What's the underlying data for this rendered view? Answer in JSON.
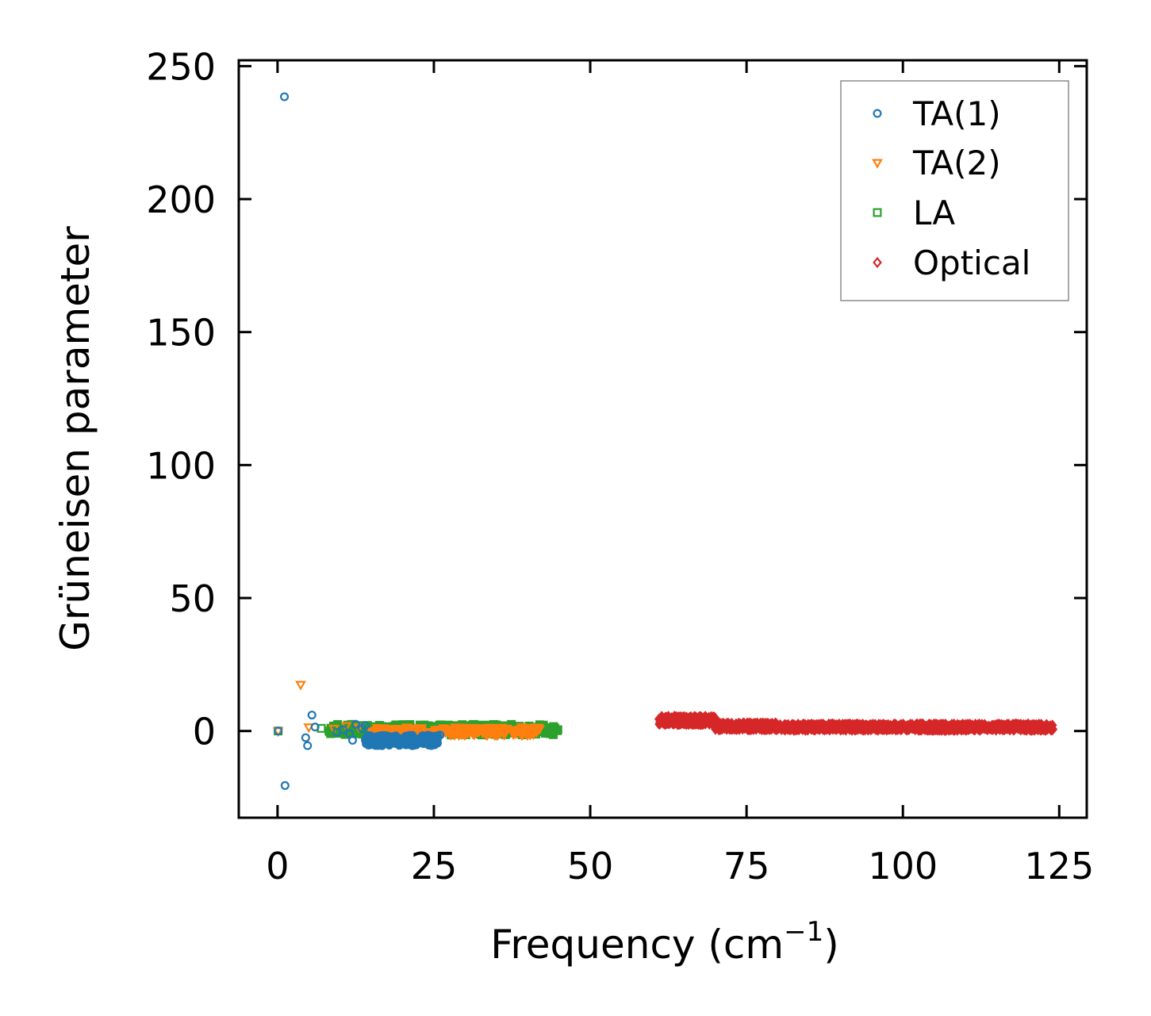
{
  "chart_data": {
    "type": "scatter",
    "xlabel": "Frequency (cm",
    "xlabel_sup": "−1",
    "xlabel_close": ")",
    "ylabel": "Grüneisen parameter",
    "xlim": [
      -6.2,
      129.4
    ],
    "ylim": [
      -32.6,
      252.2
    ],
    "xticks": [
      0,
      25,
      50,
      75,
      100,
      125
    ],
    "xtick_labels": [
      "0",
      "25",
      "50",
      "75",
      "100",
      "125"
    ],
    "yticks": [
      0,
      50,
      100,
      150,
      200,
      250
    ],
    "ytick_labels": [
      "0",
      "50",
      "100",
      "150",
      "200",
      "250"
    ],
    "grid": false,
    "legend_position": "top-right",
    "series": [
      {
        "name": "TA(1)",
        "marker": "circle",
        "color": "#1f77b4",
        "points": [
          [
            1.1,
            238.5
          ],
          [
            1.2,
            -20.5
          ],
          [
            0.1,
            0.0
          ],
          [
            4.5,
            -2.5
          ],
          [
            4.8,
            -5.5
          ],
          [
            5.5,
            6.0
          ],
          [
            6.0,
            1.5
          ],
          [
            9.5,
            -0.5
          ],
          [
            10.5,
            0.5
          ],
          [
            11.5,
            -1.0
          ],
          [
            12.5,
            2.5
          ],
          [
            12.0,
            -3.5
          ],
          [
            13.5,
            1.0
          ],
          [
            14.0,
            2.0
          ],
          [
            15.0,
            -2.0
          ],
          [
            16.0,
            -4.0
          ],
          [
            17.0,
            -3.0
          ],
          [
            18.0,
            -3.5
          ],
          [
            19.0,
            -4.2
          ],
          [
            20.0,
            -4.5
          ],
          [
            21.0,
            -4.0
          ],
          [
            22.0,
            -3.5
          ],
          [
            23.0,
            -3.0
          ],
          [
            24.0,
            -2.5
          ],
          [
            25.0,
            -2.0
          ],
          [
            26.0,
            -1.5
          ]
        ],
        "clusters": [
          {
            "x": [
              14.0,
              26.0
            ],
            "y": [
              -5.5,
              -1.5
            ],
            "n": 170
          }
        ]
      },
      {
        "name": "TA(2)",
        "marker": "triangle-down",
        "color": "#ff7f0e",
        "points": [
          [
            3.7,
            17.5
          ],
          [
            0.1,
            0.0
          ],
          [
            5.0,
            1.5
          ],
          [
            9.0,
            1.0
          ],
          [
            11.0,
            2.0
          ],
          [
            13.0,
            1.5
          ]
        ],
        "clusters": [
          {
            "x": [
              15.0,
              42.0
            ],
            "y": [
              -1.5,
              1.5
            ],
            "n": 220
          }
        ]
      },
      {
        "name": "LA",
        "marker": "square",
        "color": "#2ca02c",
        "points": [
          [
            0.1,
            0.0
          ],
          [
            7.0,
            1.0
          ],
          [
            8.5,
            -1.0
          ],
          [
            9.5,
            2.0
          ],
          [
            10.5,
            1.0
          ],
          [
            12.0,
            2.5
          ]
        ],
        "clusters": [
          {
            "x": [
              8.0,
              45.0
            ],
            "y": [
              -1.5,
              2.5
            ],
            "n": 260
          }
        ]
      },
      {
        "name": "Optical",
        "marker": "diamond",
        "color": "#d62728",
        "points": [
          [
            61.0,
            4.5
          ],
          [
            62.0,
            5.0
          ],
          [
            123.5,
            1.5
          ]
        ],
        "clusters": [
          {
            "x": [
              61.0,
              70.0
            ],
            "y": [
              2.5,
              5.5
            ],
            "n": 260
          },
          {
            "x": [
              70.0,
              80.0
            ],
            "y": [
              0.5,
              3.0
            ],
            "n": 260
          },
          {
            "x": [
              80.0,
              124.0
            ],
            "y": [
              0.3,
              2.6
            ],
            "n": 900
          }
        ]
      }
    ]
  }
}
